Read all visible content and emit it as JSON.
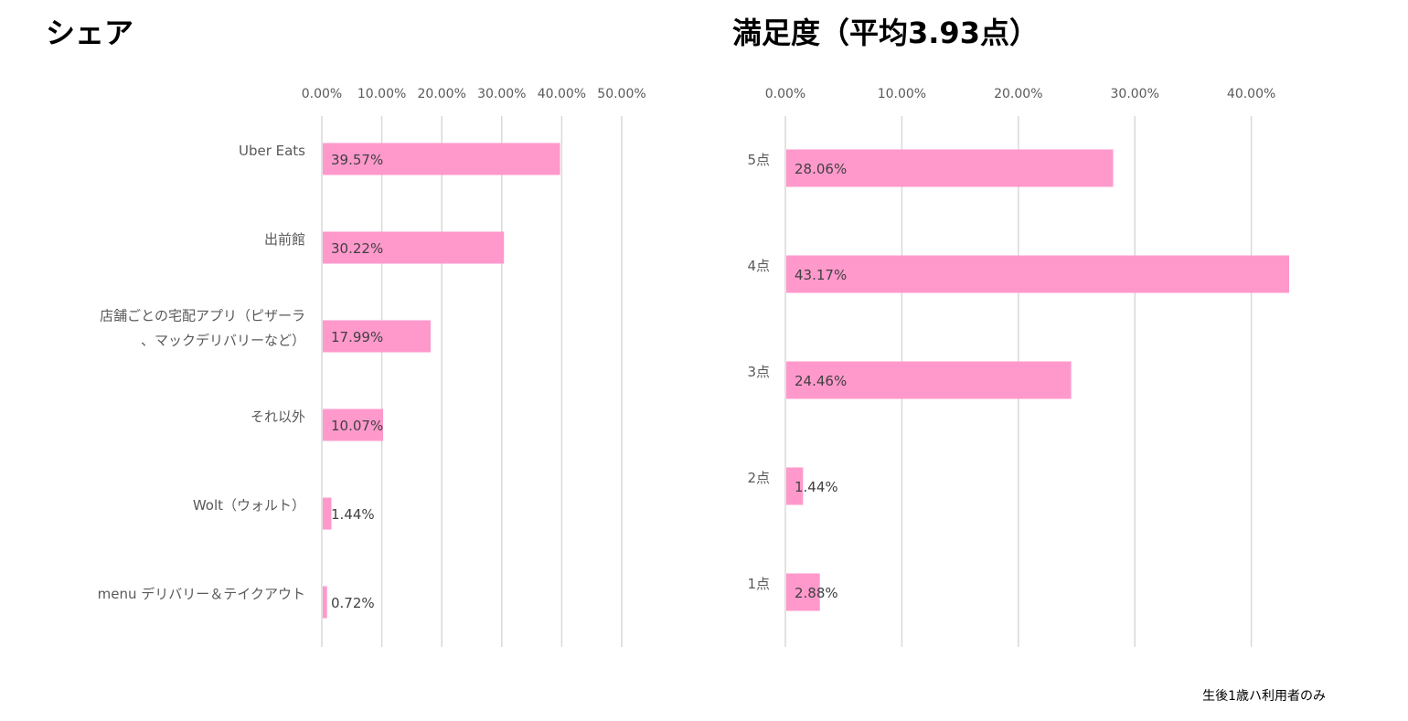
{
  "note": "生後1歳ハ利用者のみ",
  "colors": {
    "bar": "#ff99cc",
    "grid": "#d9d9d9",
    "tick_text": "#595959",
    "label_text": "#404040"
  },
  "chart_data": [
    {
      "type": "bar",
      "orientation": "horizontal",
      "title": "シェア",
      "categories": [
        "Uber Eats",
        "出前館",
        "店舗ごとの宅配アプリ（ピザーラ、マックデリバリーなど）",
        "それ以外",
        "Wolt（ウォルト）",
        "menu デリバリー＆テイクアウト"
      ],
      "values": [
        39.57,
        30.22,
        17.99,
        10.07,
        1.44,
        0.72
      ],
      "data_labels": [
        "39.57%",
        "30.22%",
        "17.99%",
        "10.07%",
        "1.44%",
        "0.72%"
      ],
      "xlim": [
        0,
        50
      ],
      "xticks": [
        "0.00%",
        "10.00%",
        "20.00%",
        "30.00%",
        "40.00%",
        "50.00%"
      ],
      "axis_position": "top",
      "grid": true,
      "legend": "none"
    },
    {
      "type": "bar",
      "orientation": "horizontal",
      "title": "満足度（平均3.93点）",
      "categories": [
        "5点",
        "4点",
        "3点",
        "2点",
        "1点"
      ],
      "values": [
        28.06,
        43.17,
        24.46,
        1.44,
        2.88
      ],
      "data_labels": [
        "28.06%",
        "43.17%",
        "24.46%",
        "1.44%",
        "2.88%"
      ],
      "xlim": [
        0,
        43.17
      ],
      "xticks": [
        "0.00%",
        "10.00%",
        "20.00%",
        "30.00%",
        "40.00%"
      ],
      "axis_position": "top",
      "grid": true,
      "legend": "none"
    }
  ]
}
